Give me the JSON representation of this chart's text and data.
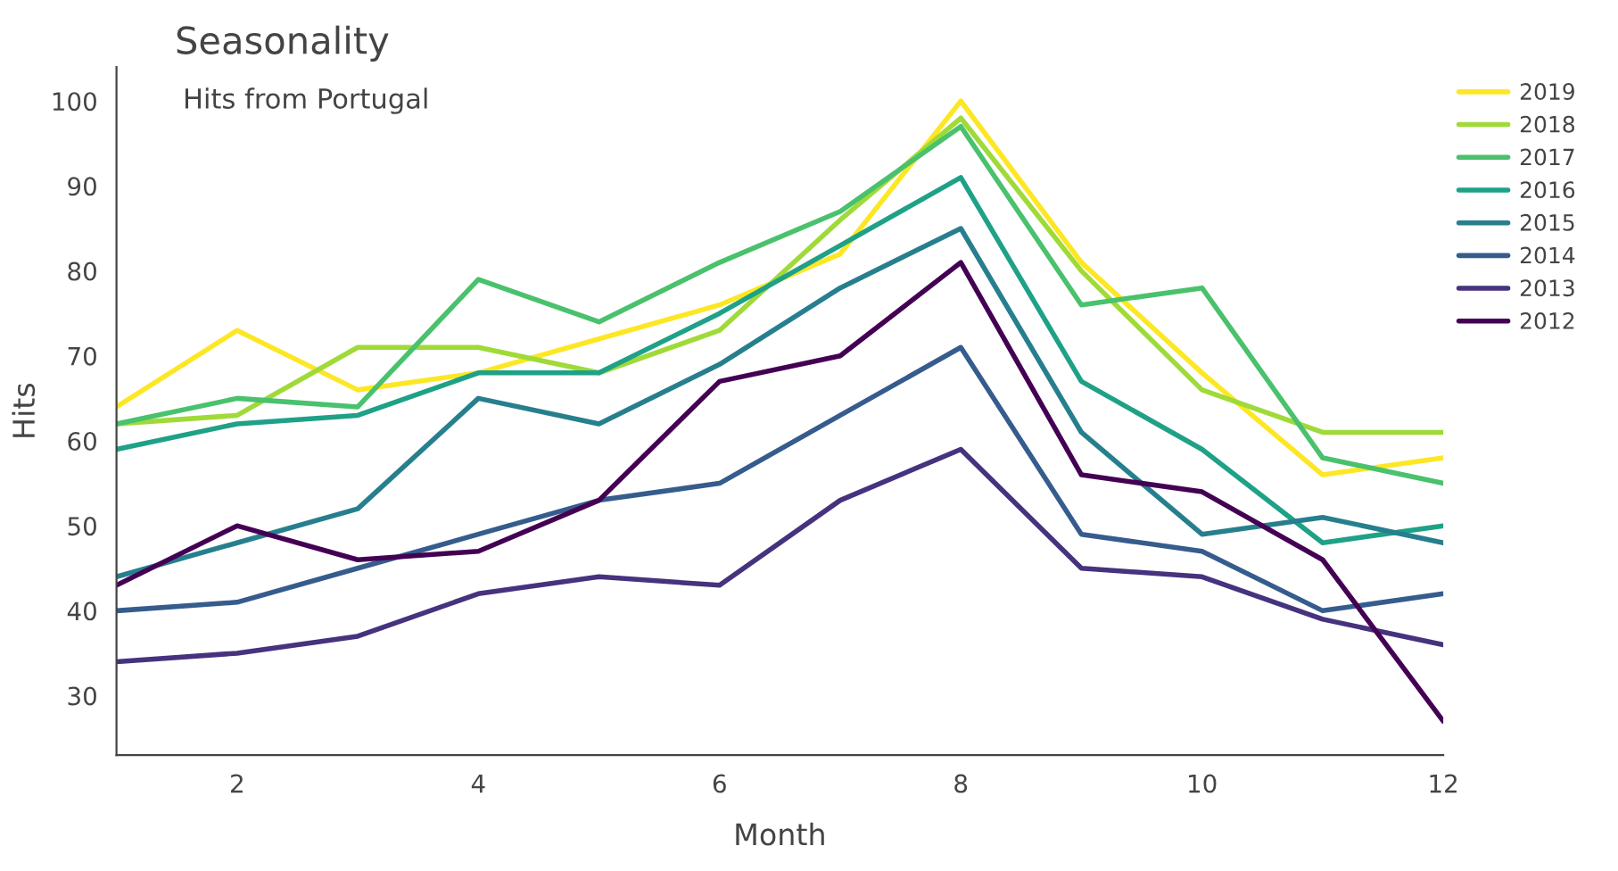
{
  "chart_data": {
    "type": "line",
    "title": "Seasonality",
    "subtitle": "Hits from Portugal",
    "xlabel": "Month",
    "ylabel": "Hits",
    "x": [
      1,
      2,
      3,
      4,
      5,
      6,
      7,
      8,
      9,
      10,
      11,
      12
    ],
    "xlim": [
      1,
      12
    ],
    "xticks": [
      2,
      4,
      6,
      8,
      10,
      12
    ],
    "ylim": [
      23,
      104
    ],
    "yticks": [
      30,
      40,
      50,
      60,
      70,
      80,
      90,
      100
    ],
    "grid": false,
    "legend": "top right",
    "marker": "none",
    "line_style": "solid",
    "series": [
      {
        "name": "2019",
        "color": "#fde725",
        "values": [
          64,
          73,
          66,
          68,
          72,
          76,
          82,
          100,
          81,
          68,
          56,
          58
        ]
      },
      {
        "name": "2018",
        "color": "#a0da39",
        "values": [
          62,
          63,
          71,
          71,
          68,
          73,
          86,
          98,
          80,
          66,
          61,
          61
        ]
      },
      {
        "name": "2017",
        "color": "#4ac16d",
        "values": [
          62,
          65,
          64,
          79,
          74,
          81,
          87,
          97,
          76,
          78,
          58,
          55
        ]
      },
      {
        "name": "2016",
        "color": "#1fa187",
        "values": [
          59,
          62,
          63,
          68,
          68,
          75,
          83,
          91,
          67,
          59,
          48,
          50
        ]
      },
      {
        "name": "2015",
        "color": "#277f8e",
        "values": [
          44,
          48,
          52,
          65,
          62,
          69,
          78,
          85,
          61,
          49,
          51,
          48
        ]
      },
      {
        "name": "2014",
        "color": "#365c8d",
        "values": [
          40,
          41,
          45,
          49,
          53,
          55,
          63,
          71,
          49,
          47,
          40,
          42
        ]
      },
      {
        "name": "2013",
        "color": "#46327e",
        "values": [
          34,
          35,
          37,
          42,
          44,
          43,
          53,
          59,
          45,
          44,
          39,
          36
        ]
      },
      {
        "name": "2012",
        "color": "#440154",
        "values": [
          43,
          50,
          46,
          47,
          53,
          67,
          70,
          81,
          56,
          54,
          46,
          27
        ]
      }
    ]
  }
}
